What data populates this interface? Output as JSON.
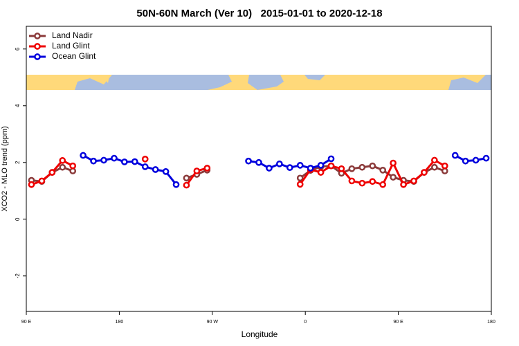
{
  "chart_data": {
    "type": "line",
    "title": "50N-60N March (Ver 10)   2015-01-01 to 2020-12-18",
    "x_label": "Longitude",
    "y_label": "XCO2 - MLO trend (ppm)",
    "x": [
      95,
      105,
      115,
      125,
      135,
      145,
      155,
      165,
      175,
      185,
      195,
      205,
      215,
      225,
      235,
      245,
      255,
      265,
      275,
      285,
      295,
      305,
      315,
      325,
      335,
      345,
      355,
      365,
      375,
      385,
      395,
      405,
      415,
      425,
      435,
      445,
      455,
      465,
      475,
      485,
      495,
      505,
      515,
      525,
      535
    ],
    "series": [
      {
        "name": "Land Nadir",
        "color": "#8b3a3a",
        "values": [
          1.37,
          1.33,
          1.65,
          1.83,
          1.7,
          null,
          null,
          null,
          null,
          null,
          null,
          null,
          null,
          null,
          null,
          1.45,
          1.58,
          1.73,
          null,
          null,
          null,
          null,
          null,
          null,
          null,
          null,
          1.45,
          1.72,
          1.85,
          1.88,
          1.62,
          1.78,
          1.83,
          1.88,
          1.73,
          1.48,
          1.37,
          1.33,
          1.65,
          1.83,
          1.7,
          null,
          null,
          null,
          null
        ]
      },
      {
        "name": "Land Glint",
        "color": "#ee0000",
        "values": [
          1.22,
          1.35,
          1.65,
          2.07,
          1.88,
          null,
          null,
          null,
          null,
          null,
          null,
          2.12,
          null,
          null,
          null,
          1.2,
          1.7,
          1.8,
          null,
          null,
          null,
          null,
          null,
          null,
          null,
          null,
          1.23,
          1.75,
          1.65,
          1.88,
          1.78,
          1.35,
          1.27,
          1.33,
          1.22,
          1.98,
          1.22,
          1.35,
          1.65,
          2.08,
          1.88,
          null,
          null,
          null,
          null
        ]
      },
      {
        "name": "Ocean Glint",
        "color": "#0000dd",
        "values": [
          null,
          null,
          null,
          null,
          null,
          2.25,
          2.05,
          2.08,
          2.15,
          2.02,
          2.03,
          1.85,
          1.75,
          1.68,
          1.22,
          null,
          null,
          null,
          null,
          null,
          null,
          2.05,
          2.0,
          1.8,
          1.95,
          1.82,
          1.9,
          1.8,
          1.9,
          2.13,
          null,
          null,
          null,
          null,
          null,
          null,
          null,
          null,
          null,
          null,
          null,
          2.25,
          2.05,
          2.08,
          2.15
        ]
      }
    ],
    "xlim": [
      90,
      540
    ],
    "xticks": [
      {
        "value": 90,
        "label": "90 E"
      },
      180,
      {
        "value": 270,
        "label": "90 W"
      },
      {
        "value": 360,
        "label": "0"
      },
      {
        "value": 450,
        "label": "90 E"
      },
      {
        "value": 540,
        "label": "180"
      }
    ],
    "ylim": [
      -3.25,
      6.8
    ],
    "yticks": [
      -2,
      0,
      2,
      4,
      6
    ],
    "legend": "top-left"
  }
}
